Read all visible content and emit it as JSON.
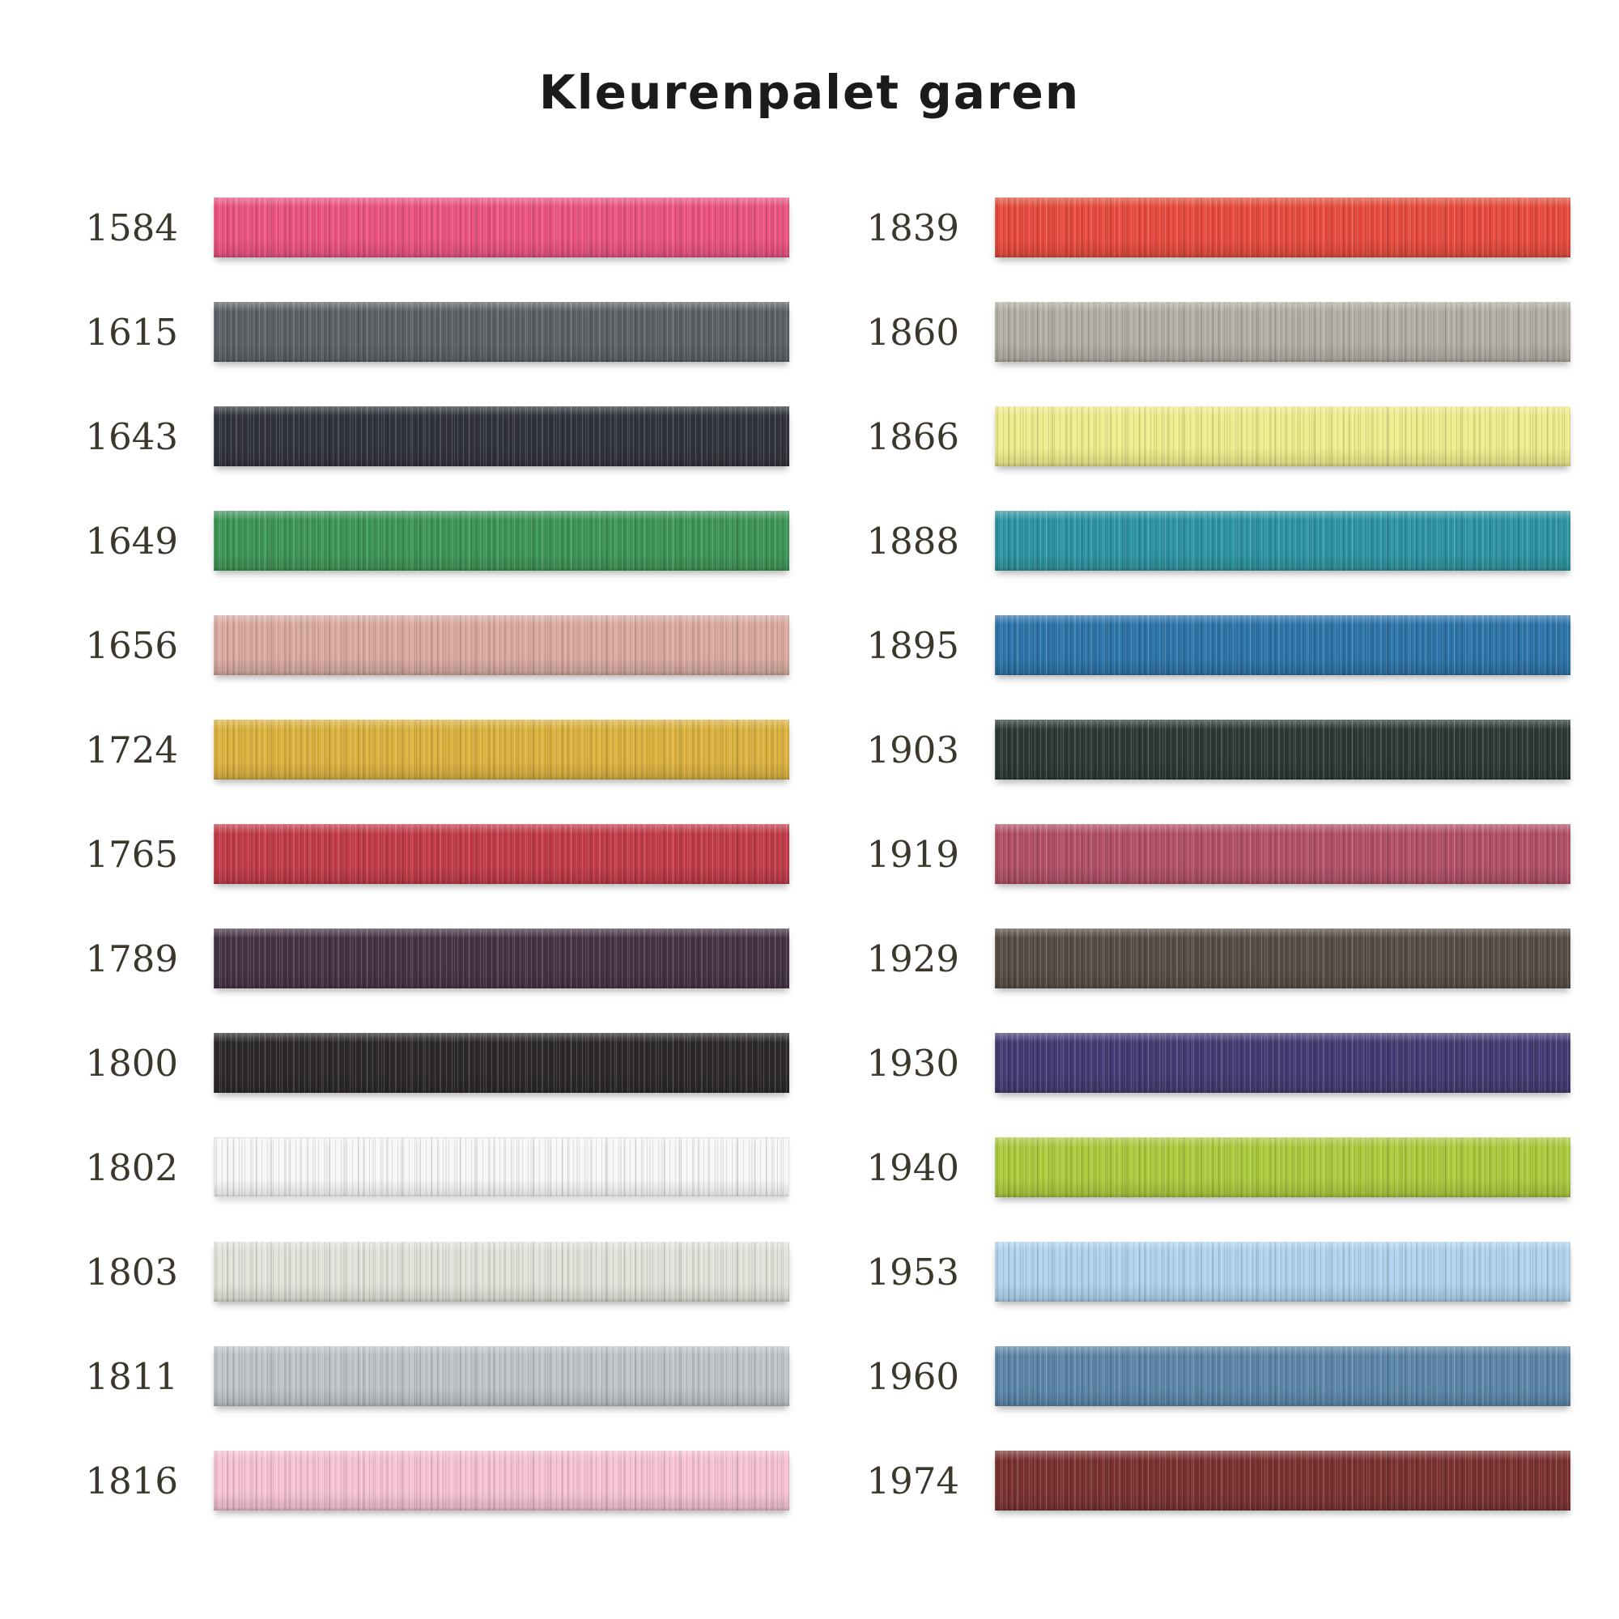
{
  "page": {
    "title": "Kleurenpalet garen",
    "background": "#ffffff",
    "title_color": "#1b1b1b",
    "label_color": "#3b372c"
  },
  "palette": {
    "columns": [
      {
        "swatches": [
          {
            "code": "1584",
            "color": "#eb5380"
          },
          {
            "code": "1615",
            "color": "#5b6166"
          },
          {
            "code": "1643",
            "color": "#32343d"
          },
          {
            "code": "1649",
            "color": "#3e9557"
          },
          {
            "code": "1656",
            "color": "#d9aba0"
          },
          {
            "code": "1724",
            "color": "#dcb23f"
          },
          {
            "code": "1765",
            "color": "#c23b49"
          },
          {
            "code": "1789",
            "color": "#453444"
          },
          {
            "code": "1800",
            "color": "#2d292b"
          },
          {
            "code": "1802",
            "color": "#f7f7f7"
          },
          {
            "code": "1803",
            "color": "#e3e2da"
          },
          {
            "code": "1811",
            "color": "#bec4c8"
          },
          {
            "code": "1816",
            "color": "#f5c3d3"
          }
        ]
      },
      {
        "swatches": [
          {
            "code": "1839",
            "color": "#e74b3d"
          },
          {
            "code": "1860",
            "color": "#b3aea3"
          },
          {
            "code": "1866",
            "color": "#eeec8c"
          },
          {
            "code": "1888",
            "color": "#2d95a2"
          },
          {
            "code": "1895",
            "color": "#2d74a9"
          },
          {
            "code": "1903",
            "color": "#2c3a33"
          },
          {
            "code": "1919",
            "color": "#b25068"
          },
          {
            "code": "1929",
            "color": "#574d46"
          },
          {
            "code": "1930",
            "color": "#443b72"
          },
          {
            "code": "1940",
            "color": "#abca3d"
          },
          {
            "code": "1953",
            "color": "#afd3ee"
          },
          {
            "code": "1960",
            "color": "#5c86a8"
          },
          {
            "code": "1974",
            "color": "#7a3231"
          }
        ]
      }
    ]
  }
}
